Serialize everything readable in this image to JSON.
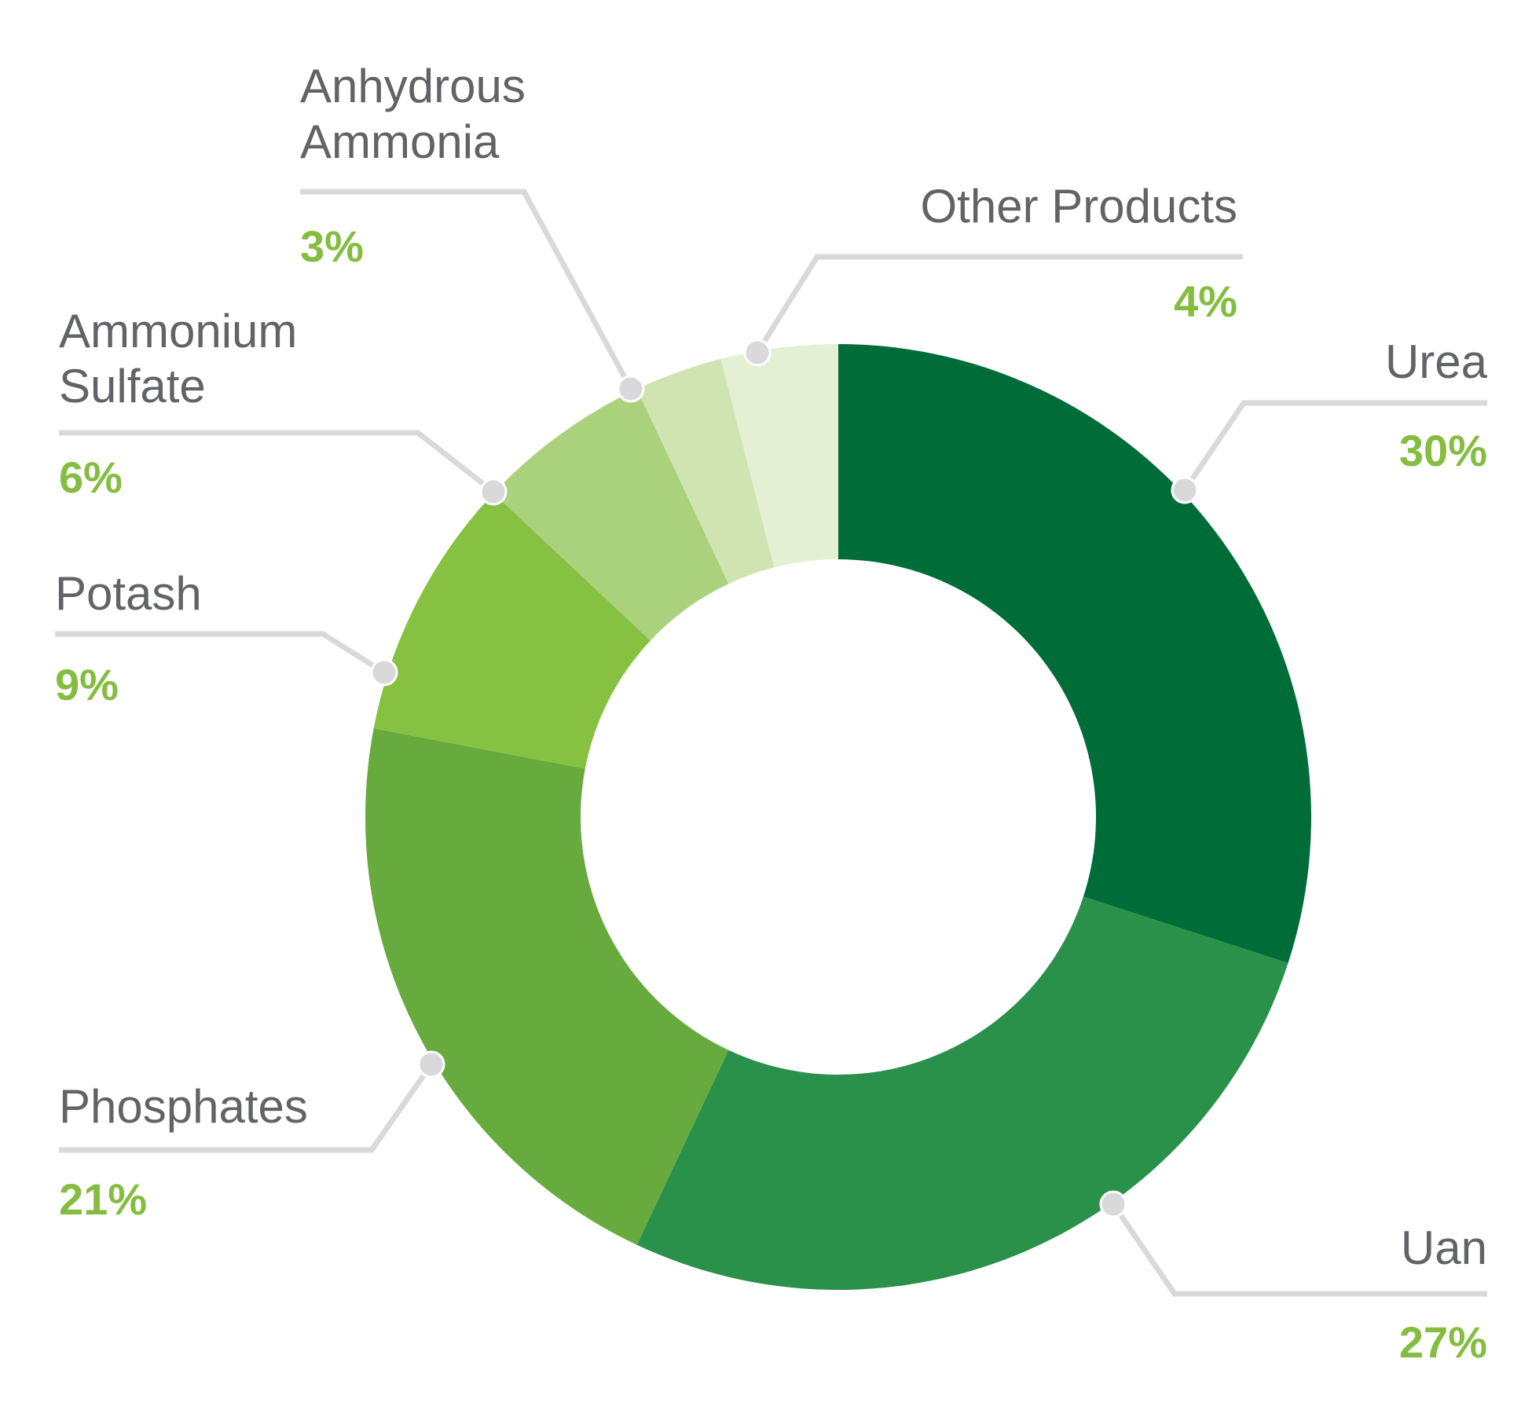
{
  "chart_data": {
    "type": "pie",
    "variant": "donut",
    "title": "",
    "slices": [
      {
        "label": "Urea",
        "value": 30,
        "display": "30%",
        "color": "#006d39"
      },
      {
        "label": "Uan",
        "value": 27,
        "display": "27%",
        "color": "#2a914a"
      },
      {
        "label": "Phosphates",
        "value": 21,
        "display": "21%",
        "color": "#67aa3e"
      },
      {
        "label": "Potash",
        "value": 9,
        "display": "9%",
        "color": "#86c142"
      },
      {
        "label": "Ammonium Sulfate",
        "value": 6,
        "display": "6%",
        "color": "#aad17c"
      },
      {
        "label": "Anhydrous Ammonia",
        "value": 3,
        "display": "3%",
        "color": "#cfe4b1"
      },
      {
        "label": "Other Products",
        "value": 4,
        "display": "4%",
        "color": "#e3f0d4"
      }
    ]
  }
}
